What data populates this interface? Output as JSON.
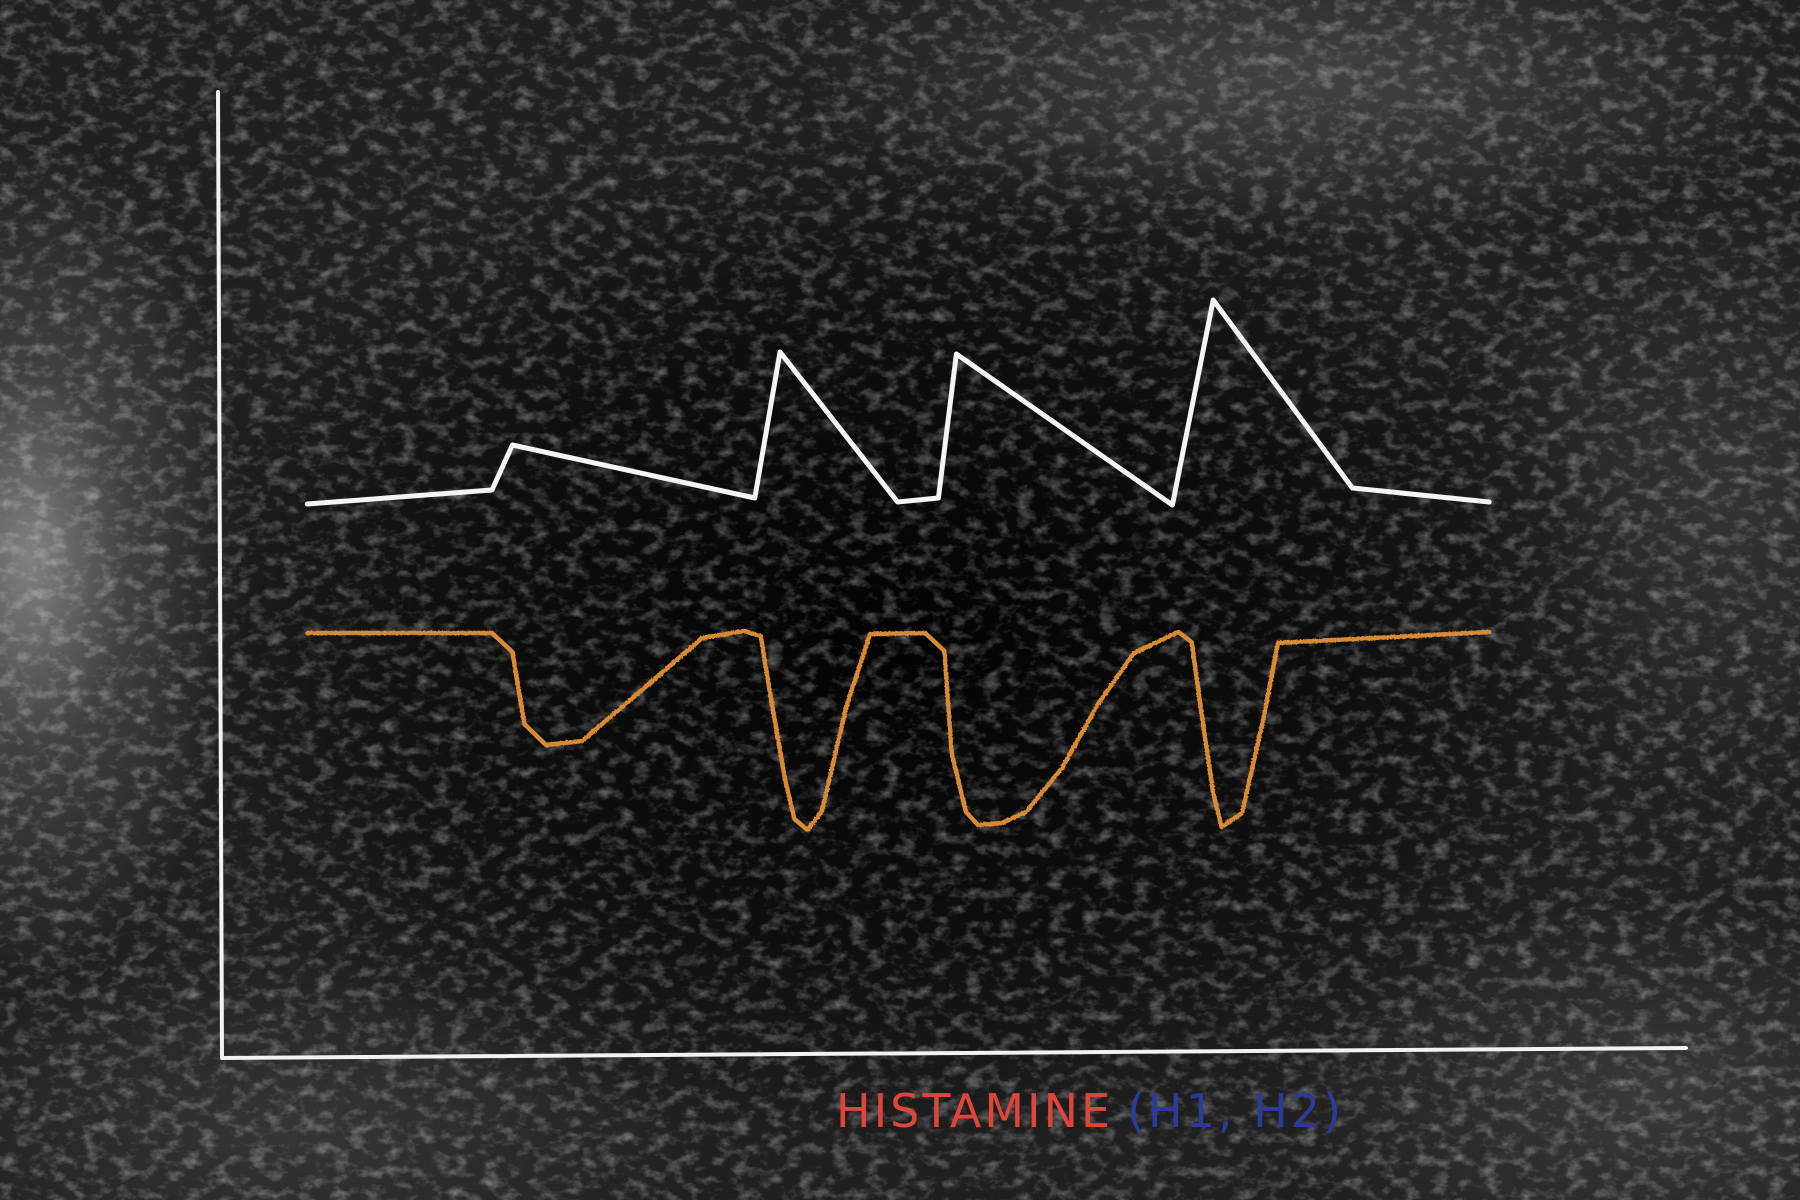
{
  "chart_data": {
    "type": "line",
    "title": "",
    "xlabel": "HISTAMINE",
    "xlabel_detail": "(H1, H2)",
    "ylabel": "",
    "ylim": [
      0,
      100
    ],
    "xlim": [
      0,
      100
    ],
    "grid": false,
    "legend": "none",
    "colors": {
      "series_1": "#f4f4f4",
      "series_2": "#d88a34",
      "xlabel": "#e0453a",
      "xlabel_detail": "#2e3a9a",
      "axis": "#f2f2f2"
    },
    "series": [
      {
        "x": [
          7.1,
          22.5,
          24.2,
          44.4,
          46.5,
          56.3,
          59.7,
          61.2,
          79.2,
          82.6,
          94.2,
          105.6
        ],
        "values": [
          55.4,
          56.8,
          61.3,
          56.0,
          70.6,
          55.6,
          56.0,
          70.4,
          55.3,
          75.8,
          57.0,
          55.6
        ]
      },
      {
        "x": [
          7.1,
          22.5,
          24.2,
          25.2,
          27.0,
          30.0,
          35.0,
          40.0,
          43.5,
          44.9,
          45.6,
          46.9,
          47.7,
          48.8,
          50.0,
          52.0,
          54.0,
          58.6,
          60.2,
          60.8,
          62.0,
          63.0,
          65.0,
          67.0,
          70.0,
          73.0,
          76.0,
          79.7,
          80.8,
          81.8,
          82.6,
          83.3,
          85.0,
          86.8,
          88.0,
          105.6
        ],
        "values": [
          42.5,
          42.5,
          40.6,
          33.4,
          31.3,
          31.7,
          36.8,
          42.0,
          42.7,
          42.2,
          37.0,
          28.0,
          23.9,
          22.8,
          24.7,
          35.0,
          42.4,
          42.5,
          40.7,
          30.5,
          24.6,
          23.3,
          23.5,
          24.6,
          29.0,
          35.4,
          40.5,
          42.6,
          41.6,
          33.0,
          26.5,
          23.1,
          24.5,
          34.0,
          41.5,
          42.6
        ]
      }
    ]
  }
}
